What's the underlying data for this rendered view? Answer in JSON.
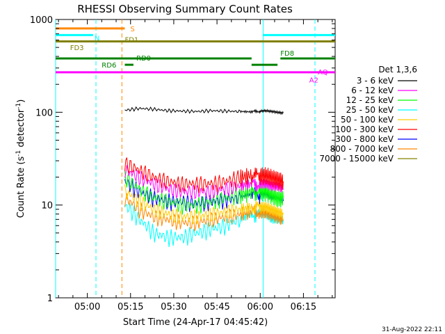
{
  "chart_data": {
    "type": "line",
    "title": "RHESSI Observing Summary Count Rates",
    "xlabel": "Start Time (24-Apr-17 04:45:42)",
    "ylabel_main": "Count Rate (s",
    "ylabel_sup1": "-1",
    "ylabel_mid": " detector",
    "ylabel_sup2": "-1",
    "ylabel_end": ")",
    "yscale": "log",
    "ylim": [
      1,
      1000
    ],
    "xlim_minutes": [
      -11,
      86
    ],
    "x_ticks": [
      {
        "m": 0,
        "label": "05:00"
      },
      {
        "m": 15,
        "label": "05:15"
      },
      {
        "m": 30,
        "label": "05:30"
      },
      {
        "m": 45,
        "label": "05:45"
      },
      {
        "m": 60,
        "label": "06:00"
      },
      {
        "m": 75,
        "label": "06:15"
      }
    ],
    "y_ticks": [
      {
        "v": 1,
        "label": "1"
      },
      {
        "v": 10,
        "label": "10"
      },
      {
        "v": 100,
        "label": "100"
      },
      {
        "v": 1000,
        "label": "1000"
      }
    ],
    "legend_title": "Det 1,3,6",
    "legend_placement": "right",
    "series": [
      {
        "name": "3 - 6 keV",
        "color": "#000000",
        "values": [
          105,
          110,
          108,
          104,
          103,
          102,
          104,
          103,
          102,
          101,
          103,
          104,
          102,
          100,
          98
        ]
      },
      {
        "name": "6 - 12 keV",
        "color": "#ff00ff",
        "values": [
          24,
          20,
          17,
          15,
          14,
          14,
          14,
          15,
          16,
          17,
          17,
          17,
          16,
          16,
          15
        ]
      },
      {
        "name": "12 - 25 keV",
        "color": "#00ff00",
        "values": [
          20,
          15,
          12,
          11,
          10,
          10,
          11,
          12,
          13,
          14,
          14,
          14,
          13,
          12,
          12
        ]
      },
      {
        "name": "25 - 50 keV",
        "color": "#00ffff",
        "values": [
          10,
          7,
          5,
          4.5,
          4.5,
          5,
          5.5,
          6,
          7,
          8,
          8,
          8,
          7,
          7,
          7
        ]
      },
      {
        "name": "50 - 100 keV",
        "color": "#ffcc00",
        "values": [
          14,
          11,
          9,
          8,
          7.5,
          7.5,
          8,
          8.5,
          9,
          9.5,
          9.5,
          9.5,
          9,
          8.5,
          8
        ]
      },
      {
        "name": "100 - 300 keV",
        "color": "#ff0000",
        "values": [
          28,
          24,
          20,
          18,
          17,
          17,
          17,
          18,
          20,
          21,
          21,
          21,
          20,
          19,
          18
        ]
      },
      {
        "name": "300 - 800 keV",
        "color": "#0000ff",
        "values": [
          18,
          14,
          12,
          11,
          11,
          10.5,
          11,
          11.5,
          12,
          13,
          13,
          13,
          12,
          12,
          11
        ]
      },
      {
        "name": "800 - 7000 keV",
        "color": "#ff8800",
        "values": [
          12,
          9,
          7.5,
          7,
          6.5,
          6.5,
          7,
          7.5,
          8,
          8.5,
          8.5,
          8.5,
          8,
          7.5,
          7
        ]
      },
      {
        "name": "7000 - 15000 keV",
        "color": "#808000",
        "values": []
      }
    ],
    "series_x_minutes": [
      13,
      18,
      23,
      28,
      33,
      38,
      43,
      48,
      53,
      57,
      60,
      62,
      64,
      66,
      68
    ],
    "flag_bars": [
      {
        "label": "S",
        "color": "#ff8800",
        "y": 800,
        "x0": -11,
        "x1": 13
      },
      {
        "label": "N",
        "color": "#00ffff",
        "y": 680,
        "x0": -11,
        "x1": 2
      },
      {
        "label": "",
        "color": "#00ffff",
        "y": 680,
        "x0": 61,
        "x1": 86
      },
      {
        "label": "FD1",
        "color": "#808000",
        "y": 580,
        "x0": -11,
        "x1": 86
      },
      {
        "label": "FD3",
        "color": "#808000",
        "y": 500,
        "x0": -11,
        "x1": -11
      },
      {
        "label": "RD0",
        "color": "#008000",
        "y": 380,
        "x0": -11,
        "x1": 57
      },
      {
        "label": "FD8",
        "color": "#008000",
        "y": 380,
        "x0": 67,
        "x1": 86
      },
      {
        "label": "RD6",
        "color": "#008000",
        "y": 325,
        "x0": 13,
        "x1": 16
      },
      {
        "label": "",
        "color": "#008000",
        "y": 325,
        "x0": 57,
        "x1": 66
      },
      {
        "label": "AQ",
        "color": "#ff00ff",
        "y": 270,
        "x0": -11,
        "x1": 86
      },
      {
        "label": "A2",
        "color": "#ff00ff",
        "y": 240,
        "x0": 83,
        "x1": 83
      }
    ],
    "vlines": [
      {
        "m": -11,
        "color": "#00ffff",
        "dash": false
      },
      {
        "m": 3,
        "color": "#00ffff",
        "dash": true
      },
      {
        "m": 12,
        "color": "#ff8800",
        "dash": true
      },
      {
        "m": 61,
        "color": "#00ffff",
        "dash": false
      },
      {
        "m": 79,
        "color": "#00ffff",
        "dash": true
      }
    ]
  },
  "footer": {
    "timestamp": "31-Aug-2022 22:11"
  }
}
